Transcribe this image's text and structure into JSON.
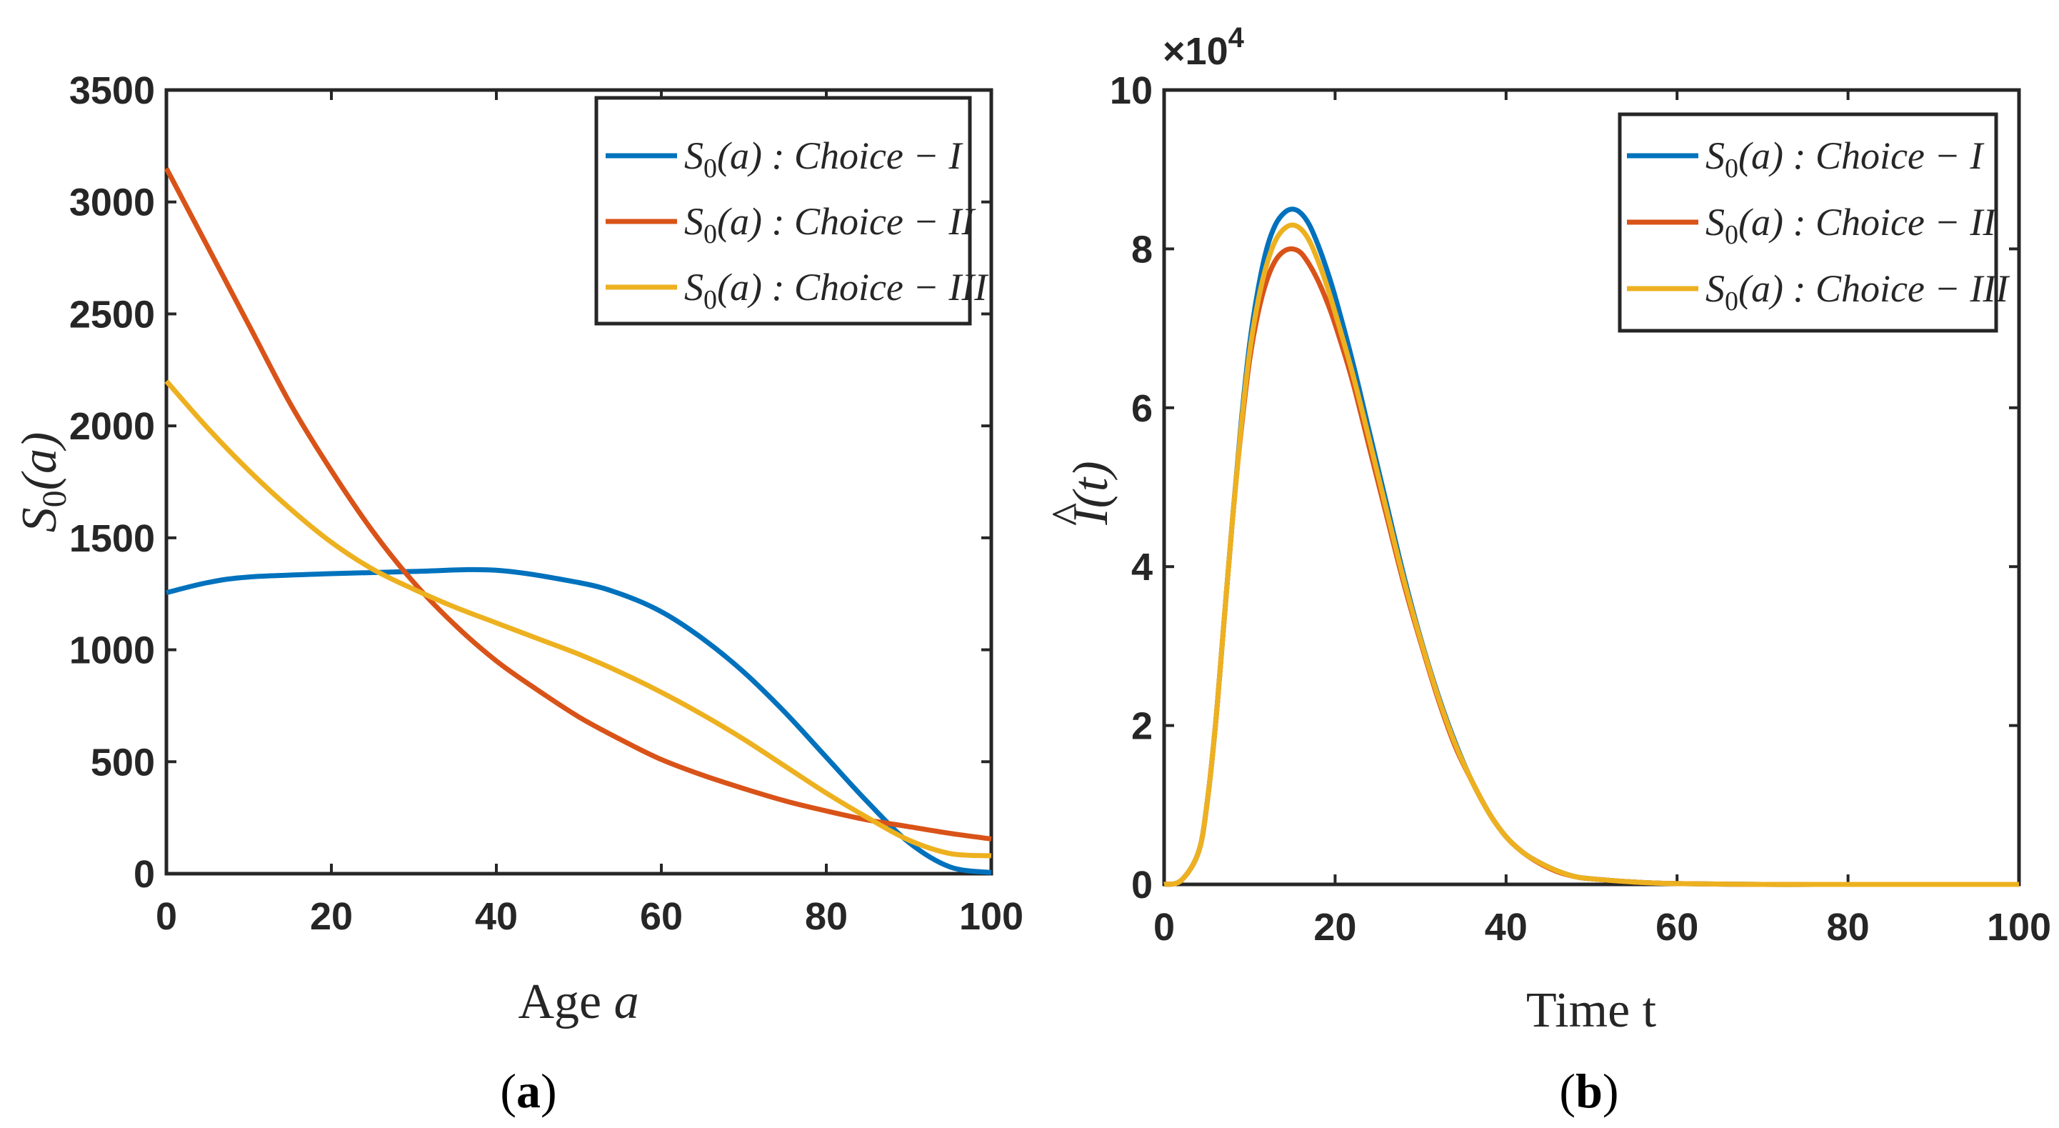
{
  "figure": {
    "panel_labels": {
      "a": {
        "open": "(",
        "letter": "a",
        "close": ")"
      },
      "b": {
        "open": "(",
        "letter": "b",
        "close": ")"
      }
    }
  },
  "chart_data": [
    {
      "id": "a",
      "type": "line",
      "xlabel": "Age a",
      "xlabel_text": "Age ",
      "xlabel_var": "a",
      "ylabel": "S0(a)",
      "ylabel_parts": {
        "main": "S",
        "sub": "0",
        "arg": "(a)"
      },
      "xlim": [
        0,
        100
      ],
      "ylim": [
        0,
        3500
      ],
      "xticks": [
        "0",
        "20",
        "40",
        "60",
        "80",
        "100"
      ],
      "yticks": [
        "0",
        "500",
        "1000",
        "1500",
        "2000",
        "2500",
        "3000",
        "3500"
      ],
      "legend_position": "top-right",
      "series": [
        {
          "name": "S0(a) : Choice − I",
          "legend_label": {
            "main": "S",
            "sub": "0",
            "rest": "(a) : Choice − I"
          },
          "color": "#0072BD",
          "x": [
            0,
            5,
            10,
            20,
            30,
            40,
            50,
            55,
            60,
            65,
            70,
            75,
            80,
            85,
            90,
            95,
            100
          ],
          "y": [
            1255,
            1300,
            1325,
            1340,
            1350,
            1355,
            1300,
            1250,
            1170,
            1050,
            900,
            720,
            520,
            320,
            140,
            30,
            5
          ]
        },
        {
          "name": "S0(a) : Choice − II",
          "legend_label": {
            "main": "S",
            "sub": "0",
            "rest": "(a) : Choice − II"
          },
          "color": "#D95319",
          "x": [
            0,
            5,
            10,
            15,
            20,
            25,
            30,
            35,
            40,
            45,
            50,
            55,
            60,
            65,
            70,
            75,
            80,
            85,
            90,
            95,
            100
          ],
          "y": [
            3150,
            2800,
            2450,
            2100,
            1800,
            1530,
            1300,
            1110,
            950,
            820,
            700,
            600,
            510,
            440,
            380,
            325,
            280,
            240,
            210,
            180,
            155
          ]
        },
        {
          "name": "S0(a) : Choice − III",
          "legend_label": {
            "main": "S",
            "sub": "0",
            "rest": "(a) : Choice − III"
          },
          "color": "#EDB120",
          "x": [
            0,
            5,
            10,
            15,
            20,
            25,
            30,
            35,
            40,
            45,
            50,
            55,
            60,
            65,
            70,
            75,
            80,
            85,
            90,
            95,
            100
          ],
          "y": [
            2200,
            1990,
            1800,
            1630,
            1480,
            1360,
            1270,
            1190,
            1120,
            1050,
            980,
            900,
            810,
            710,
            600,
            480,
            360,
            250,
            150,
            90,
            80
          ]
        }
      ]
    },
    {
      "id": "b",
      "type": "line",
      "xlabel": "Time t",
      "ylabel": "Î(t)",
      "ylabel_parts": {
        "hat": "^",
        "main": "I",
        "arg": "(t)"
      },
      "exponent_label": {
        "base": "×10",
        "exp": "4"
      },
      "xlim": [
        0,
        100
      ],
      "ylim": [
        0,
        10
      ],
      "xticks": [
        "0",
        "20",
        "40",
        "60",
        "80",
        "100"
      ],
      "yticks": [
        "0",
        "2",
        "4",
        "6",
        "8",
        "10"
      ],
      "legend_position": "top-right",
      "series": [
        {
          "name": "S0(a) : Choice − I",
          "legend_label": {
            "main": "S",
            "sub": "0",
            "rest": "(a) : Choice − I"
          },
          "color": "#0072BD",
          "x": [
            0,
            2,
            4,
            5,
            6,
            7,
            8,
            9,
            10,
            11,
            12,
            13,
            14,
            15,
            16,
            17,
            18,
            19,
            20,
            22,
            24,
            26,
            28,
            30,
            32,
            34,
            36,
            38,
            40,
            42,
            44,
            46,
            48,
            50,
            55,
            60,
            70,
            80,
            100
          ],
          "y": [
            0,
            0.05,
            0.4,
            1.0,
            2.0,
            3.3,
            4.6,
            5.8,
            6.8,
            7.5,
            8.0,
            8.3,
            8.45,
            8.5,
            8.45,
            8.3,
            8.05,
            7.75,
            7.4,
            6.6,
            5.7,
            4.8,
            3.9,
            3.1,
            2.4,
            1.8,
            1.3,
            0.9,
            0.6,
            0.4,
            0.27,
            0.17,
            0.1,
            0.07,
            0.03,
            0.01,
            0,
            0,
            0
          ]
        },
        {
          "name": "S0(a) : Choice − II",
          "legend_label": {
            "main": "S",
            "sub": "0",
            "rest": "(a) : Choice − II"
          },
          "color": "#D95319",
          "x": [
            0,
            2,
            4,
            5,
            6,
            7,
            8,
            9,
            10,
            11,
            12,
            13,
            14,
            15,
            16,
            17,
            18,
            19,
            20,
            22,
            24,
            26,
            28,
            30,
            32,
            34,
            36,
            38,
            40,
            42,
            44,
            46,
            48,
            50,
            55,
            60,
            70,
            80,
            100
          ],
          "y": [
            0,
            0.05,
            0.4,
            1.0,
            2.0,
            3.3,
            4.6,
            5.7,
            6.6,
            7.2,
            7.6,
            7.85,
            7.97,
            8.0,
            7.95,
            7.8,
            7.6,
            7.35,
            7.05,
            6.35,
            5.5,
            4.65,
            3.8,
            3.05,
            2.35,
            1.75,
            1.3,
            0.9,
            0.6,
            0.4,
            0.26,
            0.16,
            0.1,
            0.07,
            0.03,
            0.01,
            0,
            0,
            0
          ]
        },
        {
          "name": "S0(a) : Choice − III",
          "legend_label": {
            "main": "S",
            "sub": "0",
            "rest": "(a) : Choice − III"
          },
          "color": "#EDB120",
          "x": [
            0,
            2,
            4,
            5,
            6,
            7,
            8,
            9,
            10,
            11,
            12,
            13,
            14,
            15,
            16,
            17,
            18,
            19,
            20,
            22,
            24,
            26,
            28,
            30,
            32,
            34,
            36,
            38,
            40,
            42,
            44,
            46,
            48,
            50,
            55,
            60,
            70,
            80,
            100
          ],
          "y": [
            0,
            0.05,
            0.4,
            1.0,
            2.0,
            3.3,
            4.6,
            5.75,
            6.7,
            7.35,
            7.8,
            8.1,
            8.25,
            8.3,
            8.25,
            8.1,
            7.85,
            7.55,
            7.2,
            6.45,
            5.6,
            4.72,
            3.85,
            3.08,
            2.38,
            1.78,
            1.3,
            0.9,
            0.6,
            0.4,
            0.27,
            0.17,
            0.1,
            0.07,
            0.03,
            0.01,
            0,
            0,
            0
          ]
        }
      ]
    }
  ]
}
